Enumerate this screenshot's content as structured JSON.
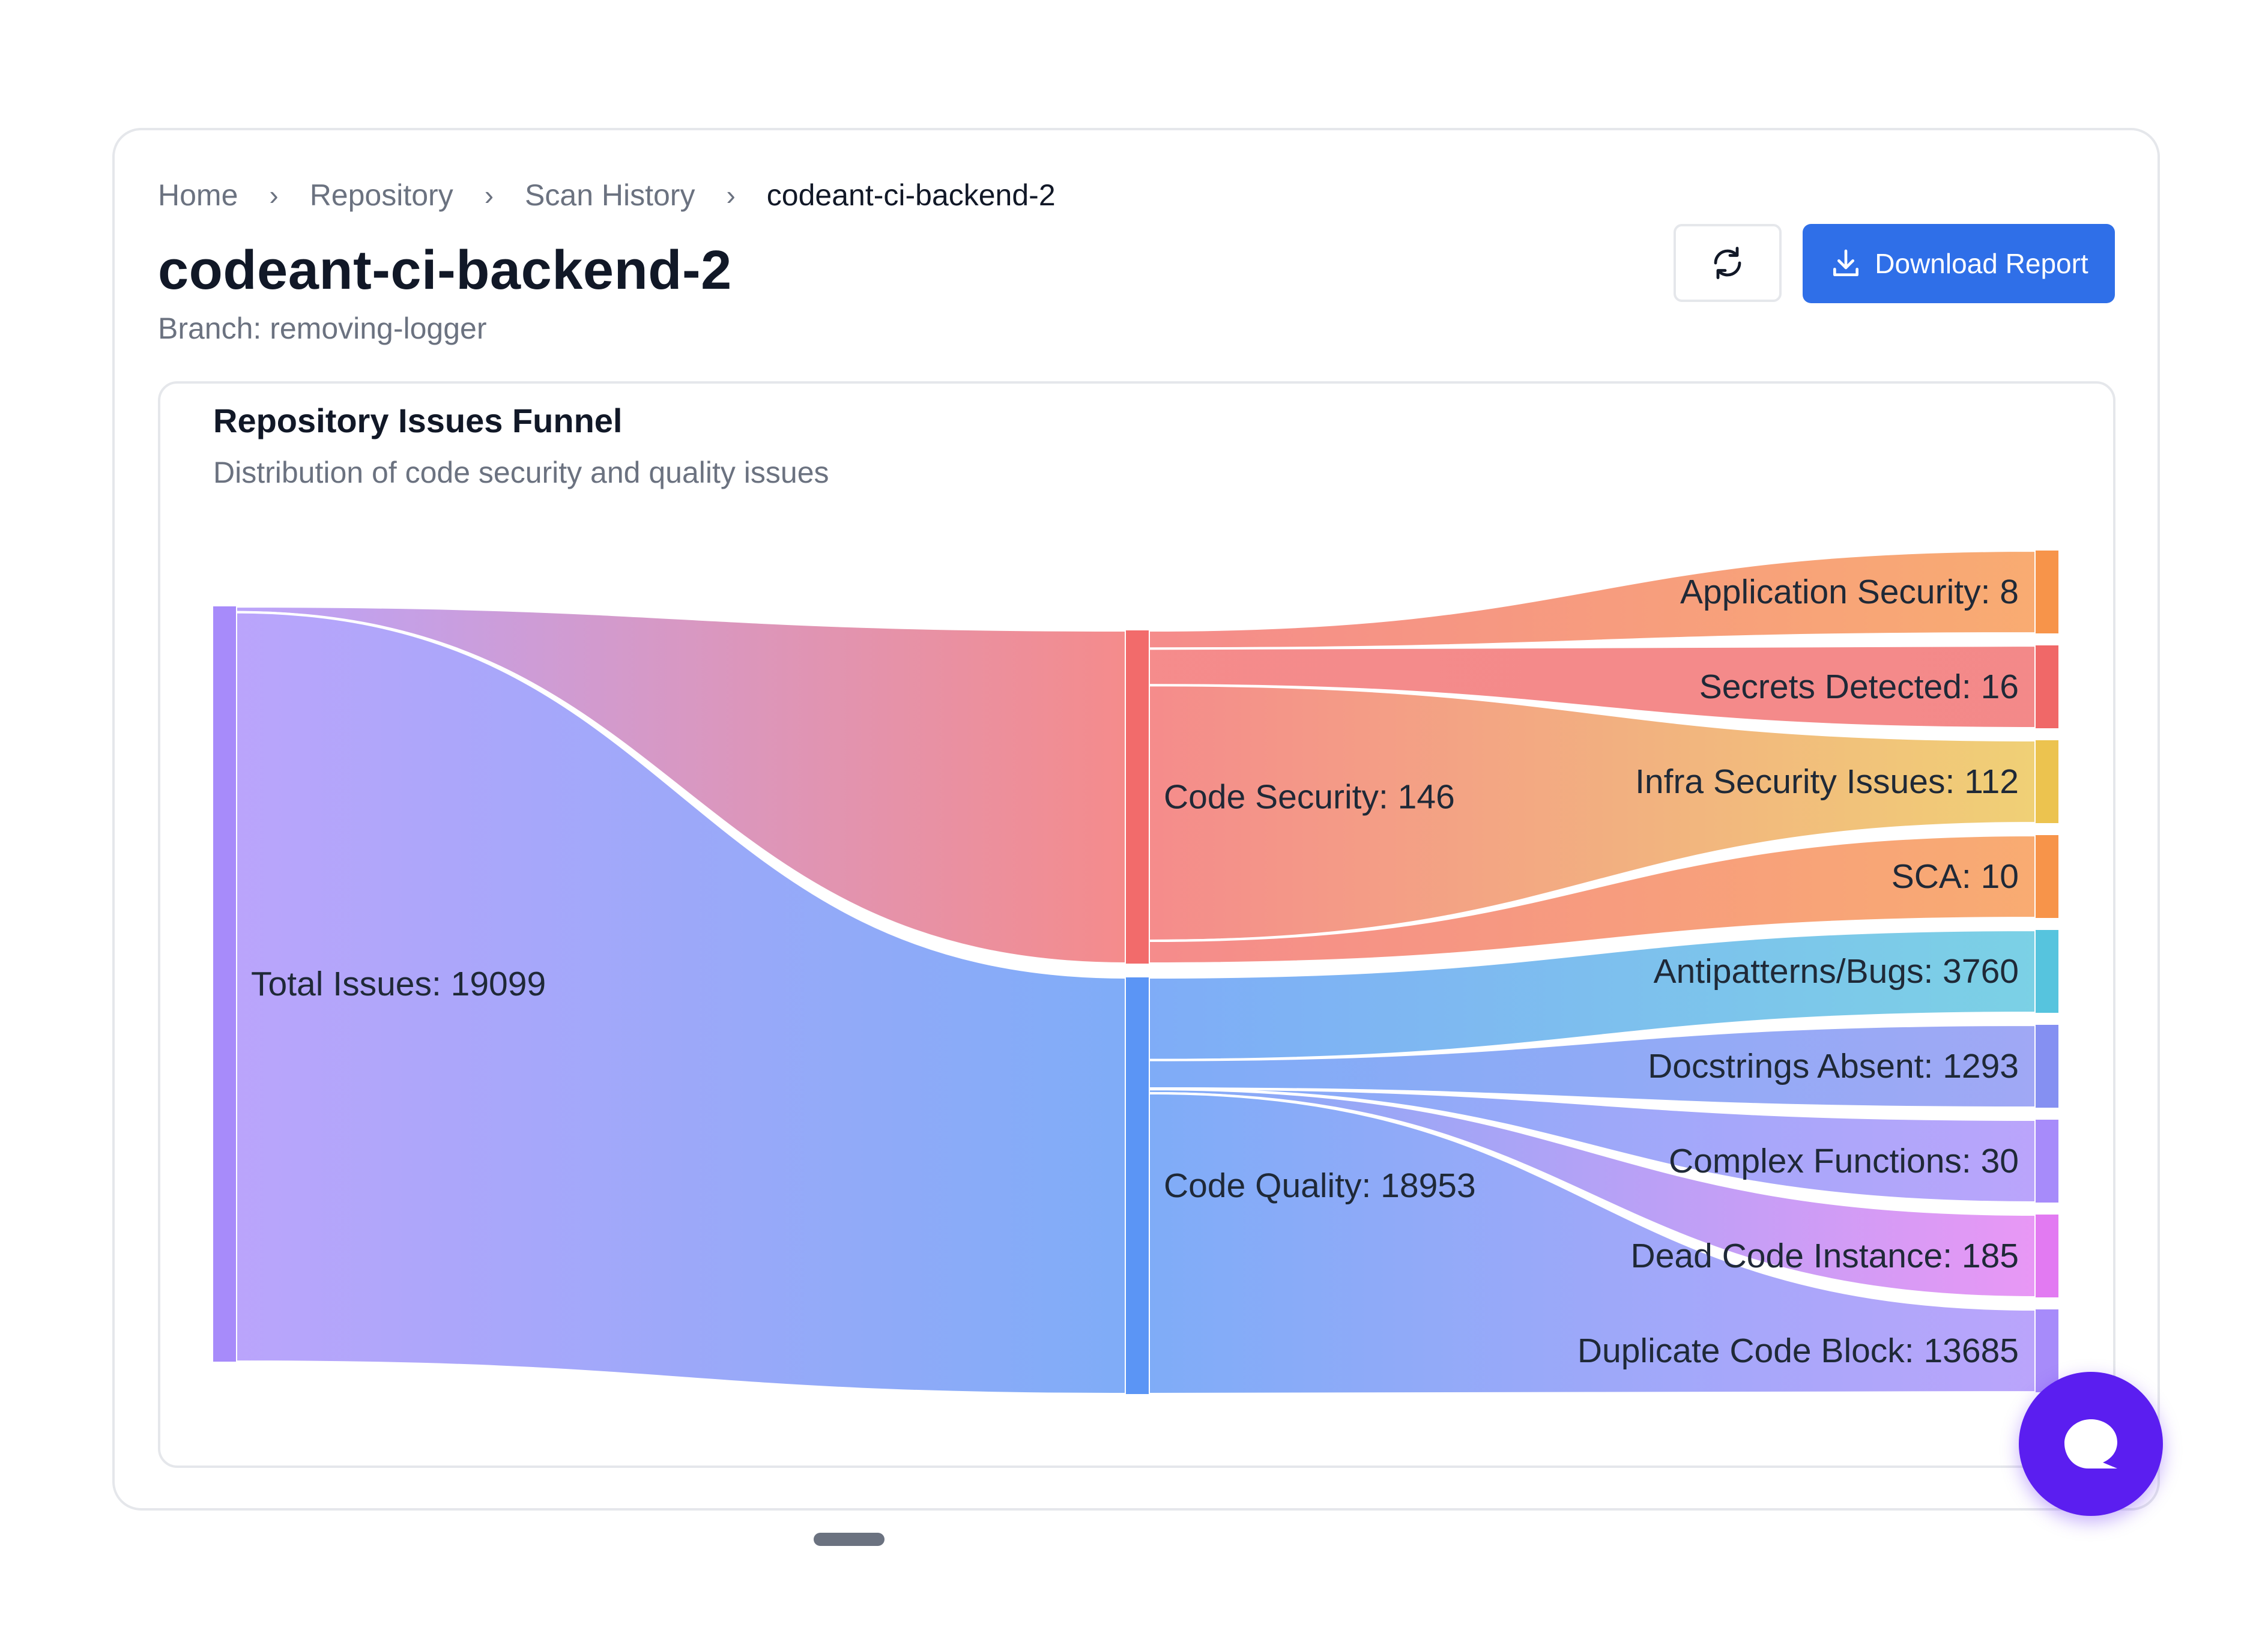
{
  "breadcrumb": {
    "home": "Home",
    "repository": "Repository",
    "scan_history": "Scan History",
    "current": "codeant-ci-backend-2"
  },
  "header": {
    "title": "codeant-ci-backend-2",
    "branch": "Branch: removing-logger",
    "download_label": "Download Report",
    "accent": "#2f6fe8"
  },
  "icons": {
    "refresh": "refresh-icon",
    "download": "download-icon",
    "chat": "chat-bubble-icon"
  },
  "chart_data": {
    "type": "sankey",
    "title": "Repository Issues Funnel",
    "subtitle": "Distribution of code security and quality issues",
    "nodes": [
      {
        "id": "total",
        "label": "Total Issues: 19099",
        "value": 19099,
        "color": "#a78bfa"
      },
      {
        "id": "security",
        "label": "Code Security: 146",
        "value": 146,
        "color": "#f26b6b"
      },
      {
        "id": "quality",
        "label": "Code Quality: 18953",
        "value": 18953,
        "color": "#5b95f5"
      },
      {
        "id": "appsec",
        "label": "Application Security: 8",
        "value": 8,
        "color": "#f7944a"
      },
      {
        "id": "secrets",
        "label": "Secrets Detected: 16",
        "value": 16,
        "color": "#f06868"
      },
      {
        "id": "infra",
        "label": "Infra Security Issues: 112",
        "value": 112,
        "color": "#ecc34f"
      },
      {
        "id": "sca",
        "label": "SCA: 10",
        "value": 10,
        "color": "#f7944a"
      },
      {
        "id": "antipatterns",
        "label": "Antipatterns/Bugs: 3760",
        "value": 3760,
        "color": "#56c4de"
      },
      {
        "id": "docstrings",
        "label": "Docstrings Absent: 1293",
        "value": 1293,
        "color": "#8590f2"
      },
      {
        "id": "complex",
        "label": "Complex Functions: 30",
        "value": 30,
        "color": "#a78bfa"
      },
      {
        "id": "deadcode",
        "label": "Dead Code Instance: 185",
        "value": 185,
        "color": "#e27af2"
      },
      {
        "id": "duplicate",
        "label": "Duplicate Code Block: 13685",
        "value": 13685,
        "color": "#a78bfa"
      }
    ],
    "links": [
      {
        "source": "total",
        "target": "security",
        "value": 146
      },
      {
        "source": "total",
        "target": "quality",
        "value": 18953
      },
      {
        "source": "security",
        "target": "appsec",
        "value": 8
      },
      {
        "source": "security",
        "target": "secrets",
        "value": 16
      },
      {
        "source": "security",
        "target": "infra",
        "value": 112
      },
      {
        "source": "security",
        "target": "sca",
        "value": 10
      },
      {
        "source": "quality",
        "target": "antipatterns",
        "value": 3760
      },
      {
        "source": "quality",
        "target": "docstrings",
        "value": 1293
      },
      {
        "source": "quality",
        "target": "complex",
        "value": 30
      },
      {
        "source": "quality",
        "target": "deadcode",
        "value": 185
      },
      {
        "source": "quality",
        "target": "duplicate",
        "value": 13685
      }
    ]
  }
}
